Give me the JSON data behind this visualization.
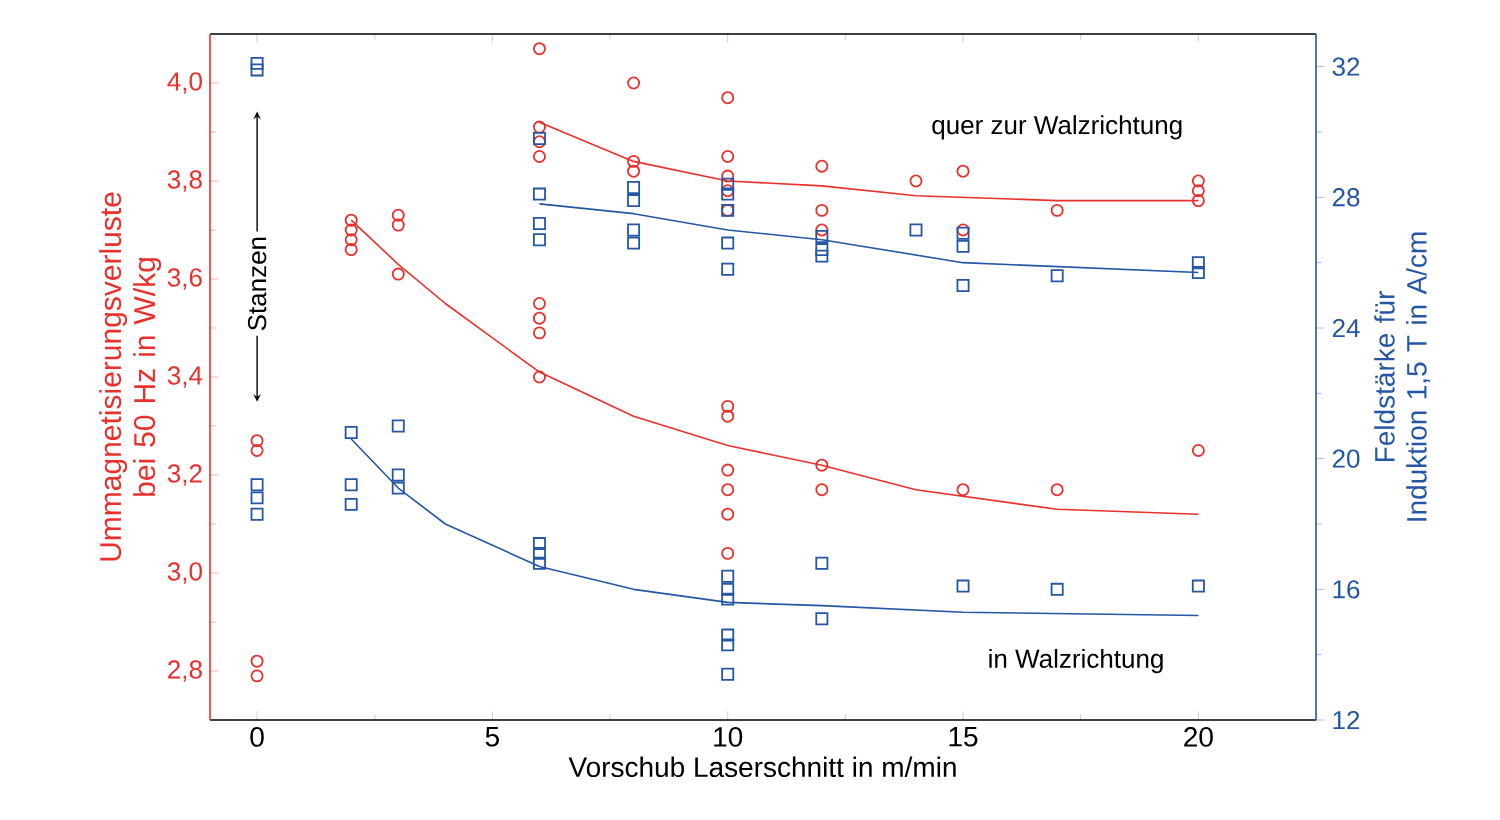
{
  "chart_data": {
    "type": "scatter",
    "xlabel": "Vorschub Laserschnitt in m/min",
    "ylabel": "Ummagnetisierungsverluste bei 50 Hz in W/kg",
    "y2label": "Feldstärke für Induktion 1,5 T in A/cm",
    "xlim": [
      -1,
      22.5
    ],
    "xticks": [
      0,
      5,
      10,
      15,
      20
    ],
    "ylim": [
      2.7,
      4.1
    ],
    "yticks": [
      {
        "value": 2.8,
        "label": "2,8"
      },
      {
        "value": 3.0,
        "label": "3,0"
      },
      {
        "value": 3.2,
        "label": "3,2"
      },
      {
        "value": 3.4,
        "label": "3,4"
      },
      {
        "value": 3.6,
        "label": "3,6"
      },
      {
        "value": 3.8,
        "label": "3,8"
      },
      {
        "value": 4.0,
        "label": "4,0"
      }
    ],
    "y2lim": [
      12,
      33
    ],
    "y2ticks": [
      12,
      16,
      20,
      24,
      28,
      32
    ],
    "series": [
      {
        "color": "#e8302c",
        "marker": "circle",
        "x": [
          0,
          0,
          0,
          0,
          2,
          2,
          2,
          2,
          3,
          3,
          3,
          6,
          6,
          6,
          6,
          6,
          6,
          6,
          6,
          8,
          8,
          8,
          10,
          10,
          10,
          10,
          10,
          10,
          10,
          10,
          10,
          10,
          10,
          12,
          12,
          12,
          12,
          12,
          14,
          15,
          15,
          15,
          17,
          17,
          20,
          20,
          20,
          20
        ],
        "values": [
          3.27,
          3.25,
          2.82,
          2.79,
          3.72,
          3.7,
          3.68,
          3.66,
          3.73,
          3.71,
          3.61,
          4.07,
          3.91,
          3.88,
          3.85,
          3.55,
          3.52,
          3.49,
          3.4,
          4.0,
          3.84,
          3.82,
          3.97,
          3.85,
          3.81,
          3.78,
          3.74,
          3.34,
          3.32,
          3.21,
          3.17,
          3.12,
          3.04,
          3.83,
          3.74,
          3.7,
          3.22,
          3.17,
          3.8,
          3.82,
          3.7,
          3.17,
          3.74,
          3.17,
          3.8,
          3.78,
          3.76,
          3.25
        ]
      },
      {
        "color": "#2456a4",
        "marker": "square",
        "axis": "y2",
        "x": [
          0,
          0,
          0,
          0,
          0,
          2,
          2,
          2,
          3,
          3,
          3,
          6,
          6,
          6,
          6,
          6,
          6,
          6,
          8,
          8,
          8,
          8,
          10,
          10,
          10,
          10,
          10,
          10,
          10,
          10,
          10,
          10,
          10,
          12,
          12,
          12,
          12,
          12,
          14,
          15,
          15,
          15,
          15,
          17,
          17,
          20,
          20,
          20
        ],
        "values": [
          32.1,
          31.9,
          19.2,
          18.8,
          18.3,
          20.8,
          19.2,
          18.6,
          21.0,
          19.5,
          19.1,
          29.8,
          28.1,
          27.2,
          26.7,
          17.4,
          17.1,
          16.8,
          28.3,
          27.9,
          27.0,
          26.6,
          28.4,
          28.1,
          27.6,
          26.6,
          25.8,
          16.4,
          16.0,
          15.7,
          14.6,
          14.3,
          13.4,
          26.8,
          26.4,
          26.2,
          16.8,
          15.1,
          27.0,
          26.9,
          26.5,
          25.3,
          16.1,
          25.6,
          16.0,
          26.0,
          25.7,
          16.1
        ]
      },
      {
        "type": "line",
        "color": "#e8302c",
        "marker": "none",
        "x": [
          6,
          8,
          10,
          12,
          14,
          17,
          20
        ],
        "values": [
          3.92,
          3.84,
          3.8,
          3.79,
          3.77,
          3.76,
          3.76
        ]
      },
      {
        "type": "line",
        "color": "#e8302c",
        "marker": "none",
        "x": [
          2,
          3,
          4,
          6,
          8,
          10,
          12,
          14,
          17,
          20
        ],
        "values": [
          3.72,
          3.63,
          3.55,
          3.41,
          3.32,
          3.26,
          3.22,
          3.17,
          3.13,
          3.12
        ]
      },
      {
        "type": "line",
        "color": "#2456a4",
        "marker": "none",
        "axis": "y2",
        "x": [
          6,
          8,
          10,
          12,
          15,
          20
        ],
        "values": [
          27.8,
          27.5,
          27.0,
          26.7,
          26.0,
          25.7
        ]
      },
      {
        "type": "line",
        "color": "#2456a4",
        "marker": "none",
        "axis": "y2",
        "x": [
          2,
          3,
          4,
          6,
          8,
          10,
          12,
          15,
          20
        ],
        "values": [
          20.6,
          19.1,
          18.0,
          16.7,
          16.0,
          15.6,
          15.5,
          15.3,
          15.2
        ]
      }
    ],
    "annotations": [
      "Stanzen",
      "quer zur Walzrichtung",
      "in Walzrichtung"
    ]
  }
}
